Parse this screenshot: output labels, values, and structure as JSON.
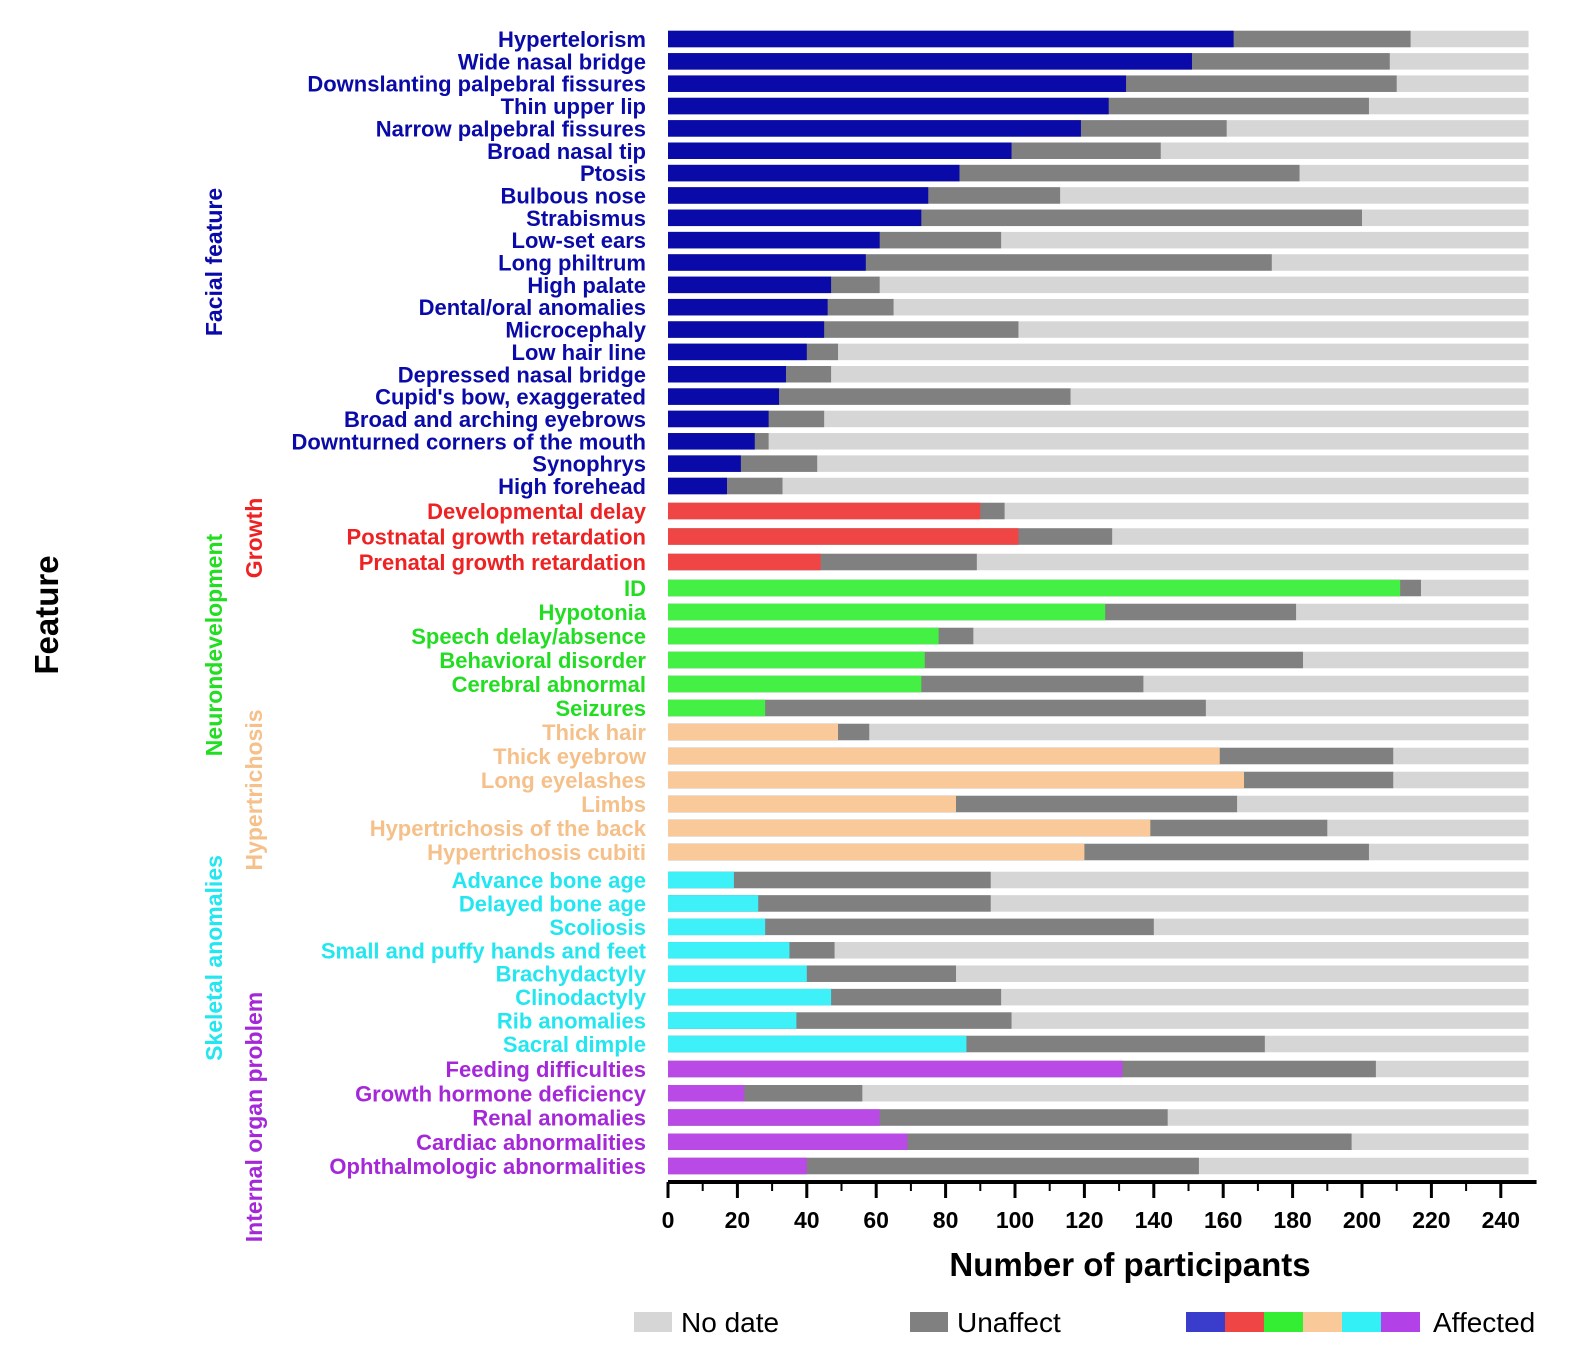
{
  "chart_data": {
    "type": "bar",
    "orientation": "horizontal",
    "stacked": true,
    "xlabel": "Number of participants",
    "ylabel": "Feature",
    "xlim": [
      0,
      248
    ],
    "xticks": [
      0,
      20,
      40,
      60,
      80,
      100,
      120,
      140,
      160,
      180,
      200,
      220,
      240
    ],
    "total": 248,
    "legend": {
      "placement": "bottom",
      "entries": [
        {
          "name": "No date",
          "color": "#d6d6d6"
        },
        {
          "name": "Unaffect",
          "color": "#808080"
        },
        {
          "name": "Affected",
          "colors": [
            "#3a3ccc",
            "#f04545",
            "#33ee33",
            "#f9c99a",
            "#33f0f7",
            "#b341e8"
          ]
        }
      ]
    },
    "series_names": [
      "Affected",
      "Unaffect",
      "No date"
    ],
    "groups": [
      {
        "name": "Facial feature",
        "color": "#0a0aa8",
        "bar_color": "#0a0aa8",
        "features": [
          {
            "label": "Hypertelorism",
            "affected": 163,
            "unaffected": 51
          },
          {
            "label": "Wide nasal bridge",
            "affected": 151,
            "unaffected": 57
          },
          {
            "label": "Downslanting palpebral fissures",
            "affected": 132,
            "unaffected": 78
          },
          {
            "label": "Thin upper lip",
            "affected": 127,
            "unaffected": 75
          },
          {
            "label": "Narrow palpebral fissures",
            "affected": 119,
            "unaffected": 42
          },
          {
            "label": "Broad nasal tip",
            "affected": 99,
            "unaffected": 43
          },
          {
            "label": "Ptosis",
            "affected": 84,
            "unaffected": 98
          },
          {
            "label": "Bulbous nose",
            "affected": 75,
            "unaffected": 38
          },
          {
            "label": "Strabismus",
            "affected": 73,
            "unaffected": 127
          },
          {
            "label": "Low-set ears",
            "affected": 61,
            "unaffected": 35
          },
          {
            "label": "Long philtrum",
            "affected": 57,
            "unaffected": 117
          },
          {
            "label": "High palate",
            "affected": 47,
            "unaffected": 14
          },
          {
            "label": "Dental/oral anomalies",
            "affected": 46,
            "unaffected": 19
          },
          {
            "label": "Microcephaly",
            "affected": 45,
            "unaffected": 56
          },
          {
            "label": "Low hair line",
            "affected": 40,
            "unaffected": 9
          },
          {
            "label": "Depressed nasal bridge",
            "affected": 34,
            "unaffected": 13
          },
          {
            "label": "Cupid's bow, exaggerated",
            "affected": 32,
            "unaffected": 84
          },
          {
            "label": "Broad and arching eyebrows",
            "affected": 29,
            "unaffected": 16
          },
          {
            "label": "Downturned corners of the mouth",
            "affected": 25,
            "unaffected": 4
          },
          {
            "label": "Synophrys",
            "affected": 21,
            "unaffected": 22
          },
          {
            "label": "High forehead",
            "affected": 17,
            "unaffected": 16
          }
        ]
      },
      {
        "name": "Growth",
        "color": "#ee2222",
        "bar_color": "#f04545",
        "features": [
          {
            "label": "Developmental delay",
            "affected": 90,
            "unaffected": 7
          },
          {
            "label": "Postnatal growth retardation",
            "affected": 101,
            "unaffected": 27
          },
          {
            "label": "Prenatal growth retardation",
            "affected": 44,
            "unaffected": 45
          }
        ]
      },
      {
        "name": "Neurondevelopment",
        "color": "#22dd22",
        "bar_color": "#44f044",
        "features": [
          {
            "label": "ID",
            "affected": 211,
            "unaffected": 6
          },
          {
            "label": "Hypotonia",
            "affected": 126,
            "unaffected": 55
          },
          {
            "label": "Speech delay/absence",
            "affected": 78,
            "unaffected": 10
          },
          {
            "label": "Behavioral disorder",
            "affected": 74,
            "unaffected": 109
          },
          {
            "label": "Cerebral abnormal",
            "affected": 73,
            "unaffected": 64
          },
          {
            "label": "Seizures",
            "affected": 28,
            "unaffected": 127
          }
        ]
      },
      {
        "name": "Hypertrichosis",
        "color": "#f5c08a",
        "bar_color": "#f9c99a",
        "features": [
          {
            "label": "Thick hair",
            "affected": 49,
            "unaffected": 9
          },
          {
            "label": "Thick eyebrow",
            "affected": 159,
            "unaffected": 50
          },
          {
            "label": "Long eyelashes",
            "affected": 166,
            "unaffected": 43
          },
          {
            "label": "Limbs",
            "affected": 83,
            "unaffected": 81
          },
          {
            "label": "Hypertrichosis of the back",
            "affected": 139,
            "unaffected": 51
          },
          {
            "label": "Hypertrichosis cubiti",
            "affected": 120,
            "unaffected": 82
          }
        ]
      },
      {
        "name": "Skeletal anomalies",
        "color": "#22e6f0",
        "bar_color": "#3ef0f8",
        "features": [
          {
            "label": "Advance bone age",
            "affected": 19,
            "unaffected": 74
          },
          {
            "label": "Delayed bone age",
            "affected": 26,
            "unaffected": 67
          },
          {
            "label": "Scoliosis",
            "affected": 28,
            "unaffected": 112
          },
          {
            "label": "Small and puffy hands and feet",
            "affected": 35,
            "unaffected": 13
          },
          {
            "label": "Brachydactyly",
            "affected": 40,
            "unaffected": 43
          },
          {
            "label": "Clinodactyly",
            "affected": 47,
            "unaffected": 49
          },
          {
            "label": "Rib anomalies",
            "affected": 37,
            "unaffected": 62
          },
          {
            "label": "Sacral dimple",
            "affected": 86,
            "unaffected": 86
          }
        ]
      },
      {
        "name": "Internal organ problem",
        "color": "#a528d8",
        "bar_color": "#b94ae6",
        "features": [
          {
            "label": "Feeding difficulties",
            "affected": 131,
            "unaffected": 73
          },
          {
            "label": "Growth hormone deficiency",
            "affected": 22,
            "unaffected": 34
          },
          {
            "label": "Renal anomalies",
            "affected": 61,
            "unaffected": 83
          },
          {
            "label": "Cardiac abnormalities",
            "affected": 69,
            "unaffected": 128
          },
          {
            "label": "Ophthalmologic abnormalities",
            "affected": 40,
            "unaffected": 113
          }
        ]
      }
    ]
  }
}
